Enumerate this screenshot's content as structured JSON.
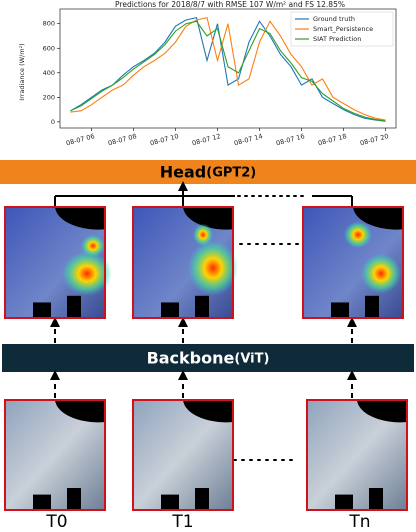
{
  "chart_data": {
    "type": "line",
    "title": "Predictions for 2018/8/7 with RMSE 107 W/m² and FS 12.85%",
    "y_label": "Irradiance (W/m²)",
    "x": [
      5,
      5.5,
      6,
      6.5,
      7,
      7.5,
      8,
      8.5,
      9,
      9.5,
      10,
      10.5,
      11,
      11.5,
      12,
      12.5,
      13,
      13.5,
      14,
      14.5,
      15,
      15.5,
      16,
      16.5,
      17,
      17.5,
      18,
      18.5,
      19,
      19.5,
      20
    ],
    "series": [
      {
        "name": "Ground truth",
        "color": "#1f77b4",
        "values": [
          90,
          140,
          200,
          260,
          300,
          380,
          450,
          500,
          560,
          650,
          780,
          830,
          850,
          500,
          800,
          300,
          350,
          650,
          820,
          700,
          550,
          450,
          300,
          350,
          200,
          150,
          100,
          60,
          30,
          15,
          5
        ]
      },
      {
        "name": "Smart_Persistence",
        "color": "#ff7f0e",
        "values": [
          80,
          90,
          140,
          200,
          260,
          300,
          380,
          450,
          500,
          560,
          650,
          780,
          830,
          850,
          500,
          800,
          300,
          350,
          650,
          820,
          700,
          550,
          450,
          300,
          350,
          200,
          150,
          100,
          60,
          30,
          15
        ]
      },
      {
        "name": "SIAT Prediction",
        "color": "#2ca02c",
        "values": [
          90,
          130,
          190,
          250,
          300,
          360,
          430,
          490,
          550,
          630,
          740,
          800,
          820,
          700,
          760,
          450,
          400,
          580,
          760,
          720,
          580,
          480,
          360,
          330,
          230,
          170,
          110,
          70,
          40,
          20,
          8
        ]
      }
    ],
    "xlim": [
      4.5,
      20.5
    ],
    "xticks": [
      {
        "value": 6,
        "label": "08-07 06"
      },
      {
        "value": 8,
        "label": "08-07 08"
      },
      {
        "value": 10,
        "label": "08-07 10"
      },
      {
        "value": 12,
        "label": "08-07 12"
      },
      {
        "value": 14,
        "label": "08-07 14"
      },
      {
        "value": 16,
        "label": "08-07 16"
      },
      {
        "value": 18,
        "label": "08-07 18"
      },
      {
        "value": 20,
        "label": "08-07 20"
      }
    ],
    "ylim": [
      -50,
      920
    ],
    "yticks": [
      0,
      200,
      400,
      600,
      800
    ],
    "legend": "upper right"
  },
  "head": {
    "name": "Head",
    "model": "(GPT2)"
  },
  "backbone": {
    "name": "Backbone",
    "model": "(ViT)"
  },
  "frames": [
    "T0",
    "T1",
    "Tn"
  ]
}
